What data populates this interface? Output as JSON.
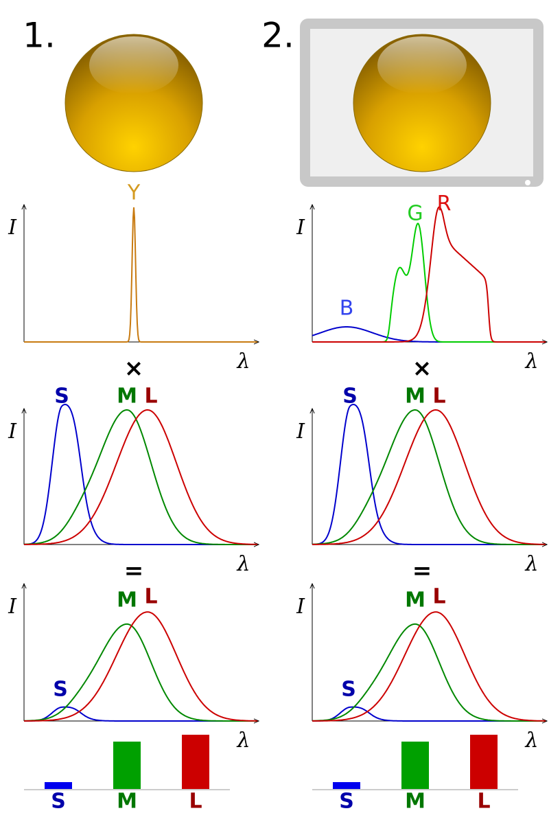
{
  "panels": [
    {
      "label": "1.",
      "spectrum": {
        "y_label": "I",
        "x_label": "λ",
        "peak_labels": [
          "Y"
        ]
      },
      "times": "×",
      "cones": {
        "y_label": "I",
        "x_label": "λ",
        "curve_labels": [
          "S",
          "M",
          "L"
        ]
      },
      "equals": "=",
      "response": {
        "y_label": "I",
        "x_label": "λ",
        "curve_labels": [
          "S",
          "M",
          "L"
        ]
      },
      "bar_labels": [
        "S",
        "M",
        "L"
      ]
    },
    {
      "label": "2.",
      "spectrum": {
        "y_label": "I",
        "x_label": "λ",
        "peak_labels": [
          "B",
          "G",
          "R"
        ]
      },
      "times": "×",
      "cones": {
        "y_label": "I",
        "x_label": "λ",
        "curve_labels": [
          "S",
          "M",
          "L"
        ]
      },
      "equals": "=",
      "response": {
        "y_label": "I",
        "x_label": "λ",
        "curve_labels": [
          "S",
          "M",
          "L"
        ]
      },
      "bar_labels": [
        "S",
        "M",
        "L"
      ]
    }
  ]
}
